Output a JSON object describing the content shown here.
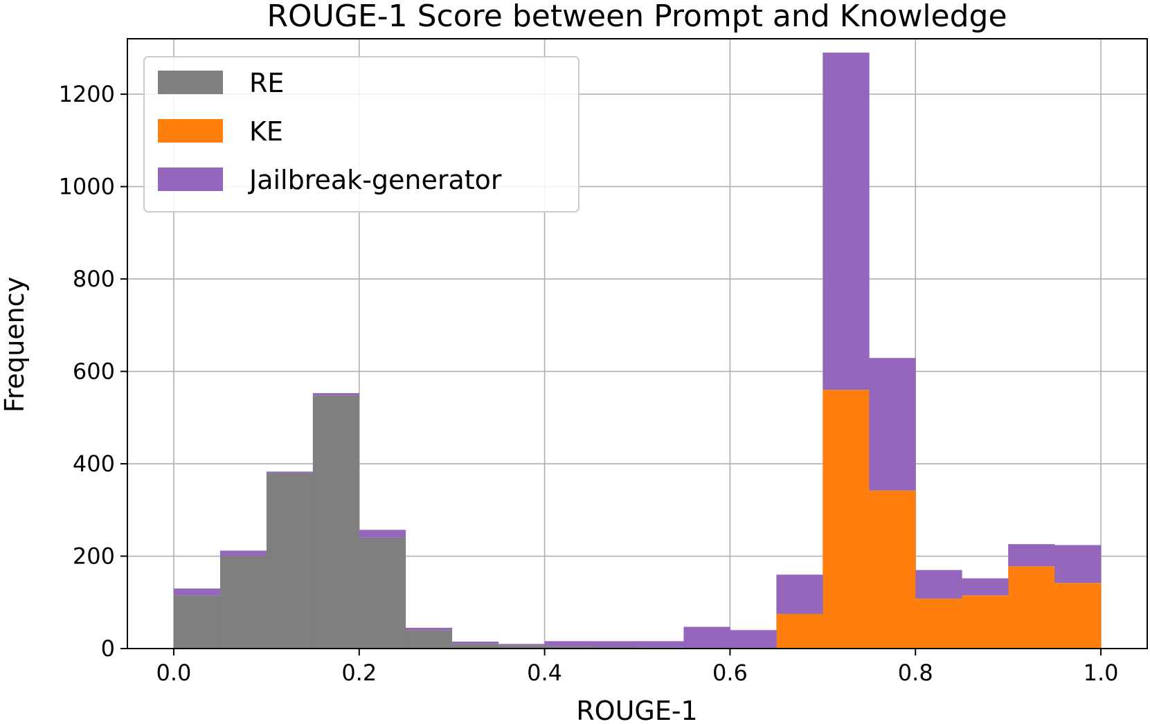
{
  "chart_data": {
    "type": "bar",
    "stacked": true,
    "title": "ROUGE-1 Score between Prompt and Knowledge",
    "xlabel": "ROUGE-1",
    "ylabel": "Frequency",
    "xlim": [
      -0.05,
      1.05
    ],
    "ylim": [
      0,
      1320
    ],
    "x_ticks": [
      0.0,
      0.2,
      0.4,
      0.6,
      0.8,
      1.0
    ],
    "x_tick_labels": [
      "0.0",
      "0.2",
      "0.4",
      "0.6",
      "0.8",
      "1.0"
    ],
    "y_ticks": [
      0,
      200,
      400,
      600,
      800,
      1000,
      1200
    ],
    "y_tick_labels": [
      "0",
      "200",
      "400",
      "600",
      "800",
      "1000",
      "1200"
    ],
    "grid": true,
    "legend_position": "top-left",
    "bin_edges": [
      0.0,
      0.05,
      0.1,
      0.15,
      0.2,
      0.25,
      0.3,
      0.35,
      0.4,
      0.45,
      0.5,
      0.55,
      0.6,
      0.65,
      0.7,
      0.75,
      0.8,
      0.85,
      0.9,
      0.95,
      1.0
    ],
    "series": [
      {
        "name": "RE",
        "color": "#7f7f7f",
        "values": [
          115,
          200,
          380,
          548,
          240,
          40,
          10,
          7,
          5,
          3,
          2,
          0,
          0,
          0,
          0,
          0,
          0,
          0,
          0,
          0
        ]
      },
      {
        "name": "KE",
        "color": "#ff7f0e",
        "values": [
          0,
          0,
          0,
          0,
          0,
          0,
          0,
          0,
          0,
          0,
          0,
          0,
          0,
          75,
          560,
          342,
          108,
          115,
          178,
          142
        ]
      },
      {
        "name": "Jailbreak-generator",
        "color": "#9467bd",
        "values": [
          15,
          12,
          3,
          5,
          17,
          5,
          5,
          3,
          11,
          13,
          14,
          47,
          40,
          85,
          730,
          287,
          62,
          37,
          48,
          82
        ]
      }
    ]
  }
}
